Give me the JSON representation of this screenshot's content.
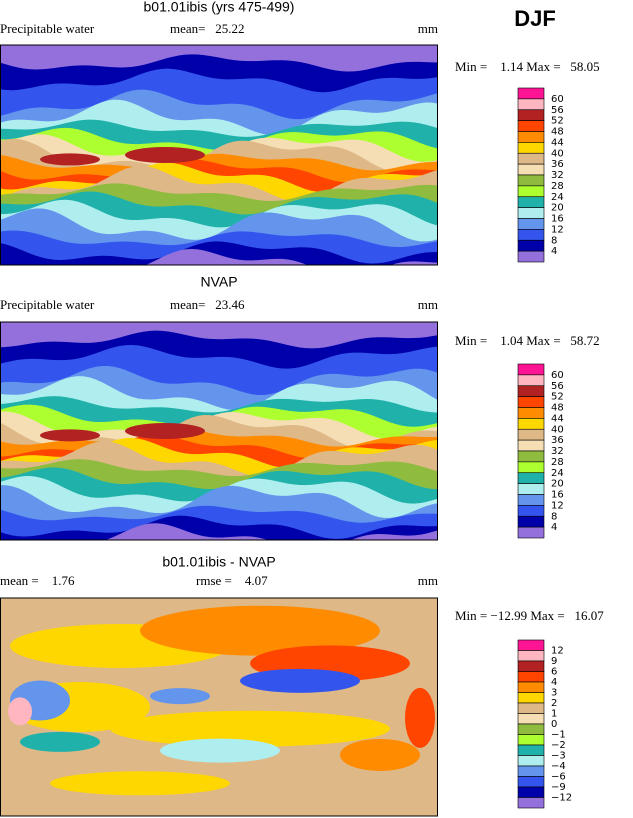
{
  "season": "DJF",
  "panels": [
    {
      "title": "b01.01ibis (yrs 475-499)",
      "variable": "Precipitable water",
      "stats": [
        "mean=   25.22"
      ],
      "units": "mm",
      "minmax": "Min =    1.14 Max =   58.05",
      "colorbar": {
        "labels": [
          "60",
          "56",
          "52",
          "48",
          "44",
          "40",
          "36",
          "32",
          "28",
          "24",
          "20",
          "16",
          "12",
          "8",
          "4"
        ],
        "colors": [
          "#ff1493",
          "#ffb6c1",
          "#b22222",
          "#ff4500",
          "#ff8c00",
          "#ffd700",
          "#deb887",
          "#f5deb3",
          "#8fbc3f",
          "#adff2f",
          "#20b2aa",
          "#afeeee",
          "#6495ed",
          "#3355ee",
          "#0000aa",
          "#9370db"
        ]
      }
    },
    {
      "title": "NVAP",
      "variable": "Precipitable water",
      "stats": [
        "mean=   23.46"
      ],
      "units": "mm",
      "minmax": "Min =    1.04 Max =   58.72",
      "colorbar": {
        "labels": [
          "60",
          "56",
          "52",
          "48",
          "44",
          "40",
          "36",
          "32",
          "28",
          "24",
          "20",
          "16",
          "12",
          "8",
          "4"
        ],
        "colors": [
          "#ff1493",
          "#ffb6c1",
          "#b22222",
          "#ff4500",
          "#ff8c00",
          "#ffd700",
          "#deb887",
          "#f5deb3",
          "#8fbc3f",
          "#adff2f",
          "#20b2aa",
          "#afeeee",
          "#6495ed",
          "#3355ee",
          "#0000aa",
          "#9370db"
        ]
      }
    },
    {
      "title": "b01.01ibis - NVAP",
      "stats": [
        "mean =    1.76",
        "rmse =    4.07"
      ],
      "units": "mm",
      "minmax": "Min = −12.99 Max =   16.07",
      "colorbar": {
        "labels": [
          "12",
          "9",
          "6",
          "4",
          "3",
          "2",
          "1",
          "0",
          "−1",
          "−2",
          "−3",
          "−4",
          "−6",
          "−9",
          "−12"
        ],
        "colors": [
          "#ff1493",
          "#ffb6c1",
          "#b22222",
          "#ff4500",
          "#ff8c00",
          "#ffd700",
          "#deb887",
          "#f5deb3",
          "#8fbc3f",
          "#adff2f",
          "#20b2aa",
          "#afeeee",
          "#6495ed",
          "#3355ee",
          "#0000aa",
          "#9370db"
        ]
      }
    }
  ]
}
